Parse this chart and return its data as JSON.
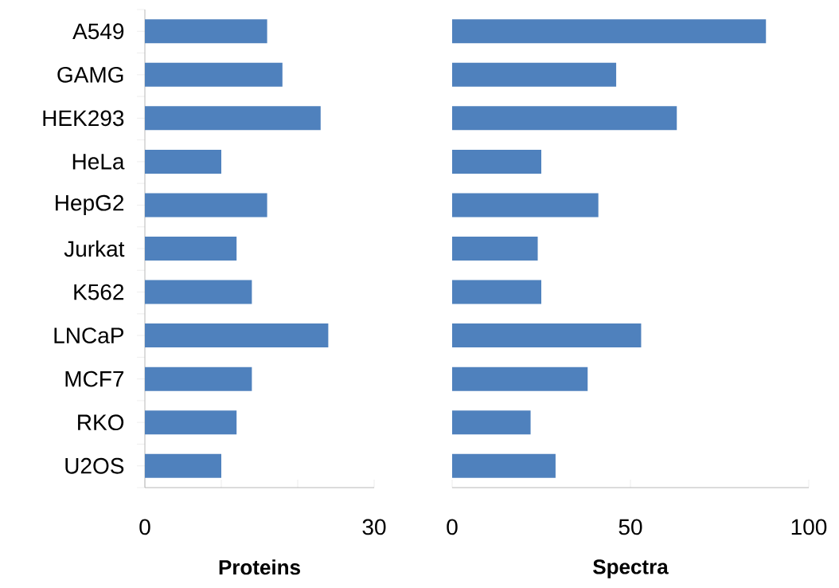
{
  "chart_data": [
    {
      "type": "bar",
      "orientation": "horizontal",
      "xlabel": "Proteins",
      "categories": [
        "A549",
        "GAMG",
        "HEK293",
        "HeLa",
        "HepG2",
        "Jurkat",
        "K562",
        "LNCaP",
        "MCF7",
        "RKO",
        "U2OS"
      ],
      "values": [
        16,
        18,
        23,
        10,
        16,
        12,
        14,
        24,
        14,
        12,
        10
      ],
      "color": "#4f81bd",
      "xlim": [
        0,
        30
      ],
      "xticks": [
        0,
        {
          "value": 10,
          "label": null
        },
        {
          "value": 20,
          "label": null
        },
        30
      ],
      "grid": false
    },
    {
      "type": "bar",
      "orientation": "horizontal",
      "xlabel": "Spectra",
      "categories": [
        null,
        null,
        null,
        null,
        null,
        null,
        null,
        null,
        null,
        null,
        null
      ],
      "values": [
        88,
        46,
        63,
        25,
        41,
        24,
        25,
        53,
        38,
        22,
        29
      ],
      "color": "#4f81bd",
      "xlim": [
        0,
        100
      ],
      "xticks": [
        0,
        50,
        100
      ],
      "tick_labels": "x",
      "grid": false
    }
  ]
}
